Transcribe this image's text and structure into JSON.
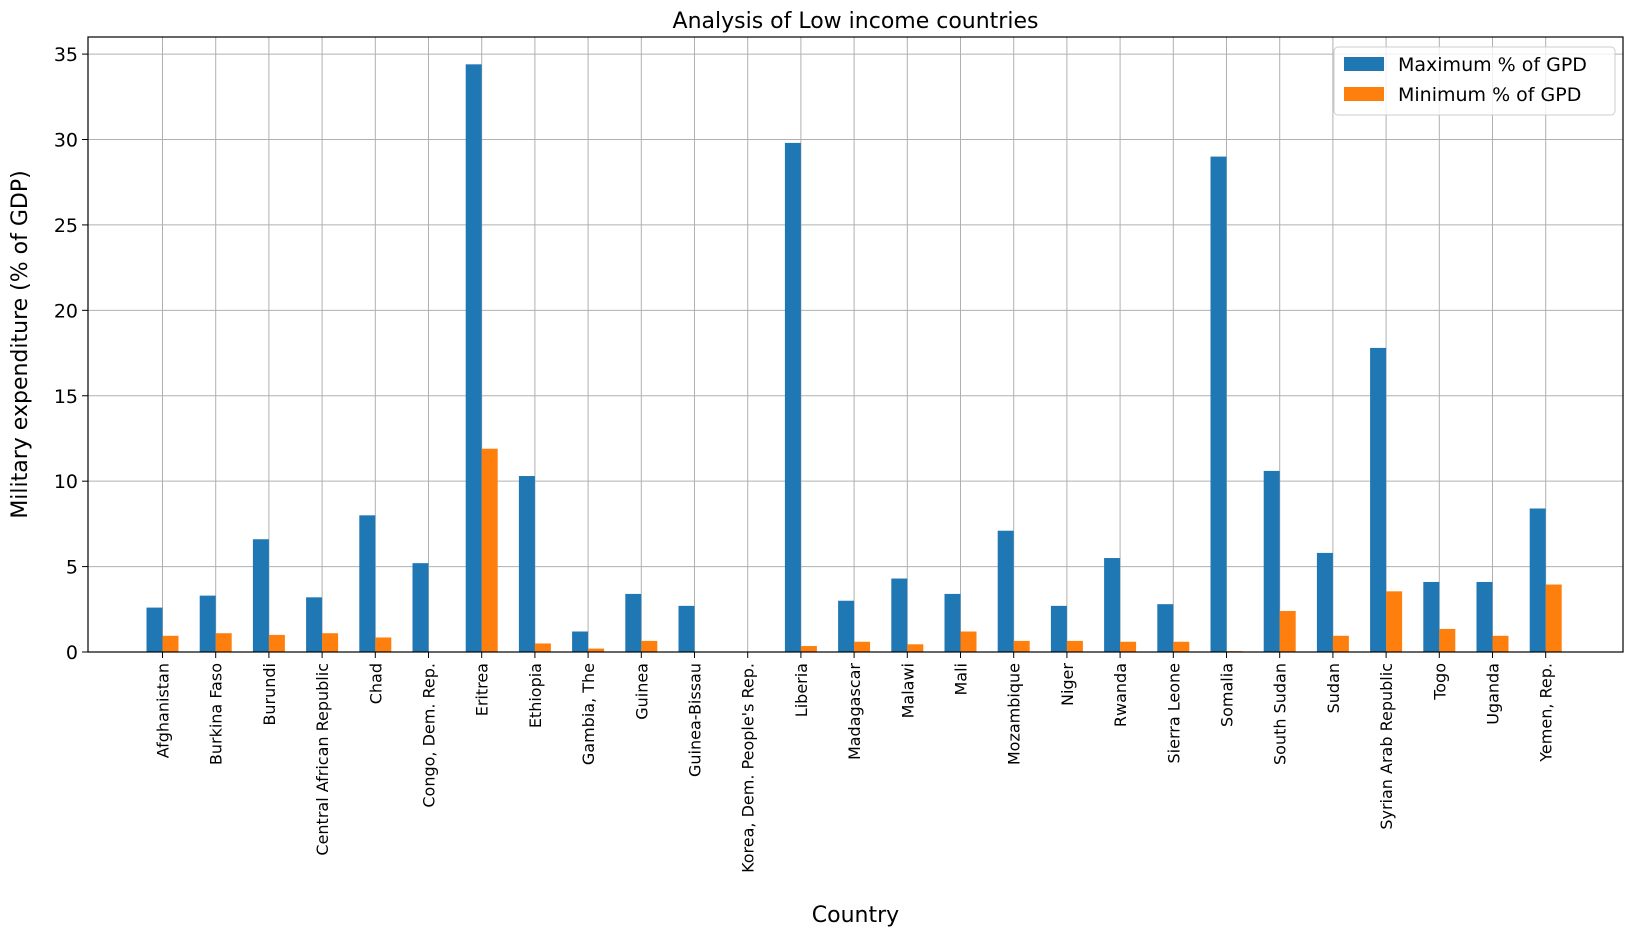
{
  "chart_data": {
    "type": "bar",
    "title": "Analysis of Low income countries",
    "xlabel": "Country",
    "ylabel": "Military expenditure (% of GDP)",
    "ylim": [
      0,
      36
    ],
    "yticks": [
      0,
      5,
      10,
      15,
      20,
      25,
      30,
      35
    ],
    "grid": true,
    "legend_position": "top-right",
    "categories": [
      "Afghanistan",
      "Burkina Faso",
      "Burundi",
      "Central African Republic",
      "Chad",
      "Congo, Dem. Rep.",
      "Eritrea",
      "Ethiopia",
      "Gambia, The",
      "Guinea",
      "Guinea-Bissau",
      "Korea, Dem. People's Rep.",
      "Liberia",
      "Madagascar",
      "Malawi",
      "Mali",
      "Mozambique",
      "Niger",
      "Rwanda",
      "Sierra Leone",
      "Somalia",
      "South Sudan",
      "Sudan",
      "Syrian Arab Republic",
      "Togo",
      "Uganda",
      "Yemen, Rep."
    ],
    "series": [
      {
        "name": "Maximum % of GPD",
        "color": "#1f77b4",
        "values": [
          2.6,
          3.3,
          6.6,
          3.2,
          8.0,
          5.2,
          34.4,
          10.3,
          1.2,
          3.4,
          2.7,
          0.0,
          29.8,
          3.0,
          4.3,
          3.4,
          7.1,
          2.7,
          5.5,
          2.8,
          29.0,
          10.6,
          5.8,
          17.8,
          4.1,
          4.1,
          8.4
        ]
      },
      {
        "name": "Minimum % of GPD",
        "color": "#ff7f0e",
        "values": [
          0.95,
          1.1,
          1.0,
          1.1,
          0.85,
          0.0,
          11.9,
          0.5,
          0.2,
          0.65,
          0.0,
          0.0,
          0.35,
          0.6,
          0.45,
          1.2,
          0.65,
          0.65,
          0.6,
          0.6,
          0.05,
          2.4,
          0.95,
          3.55,
          1.35,
          0.95,
          3.95
        ]
      }
    ]
  }
}
